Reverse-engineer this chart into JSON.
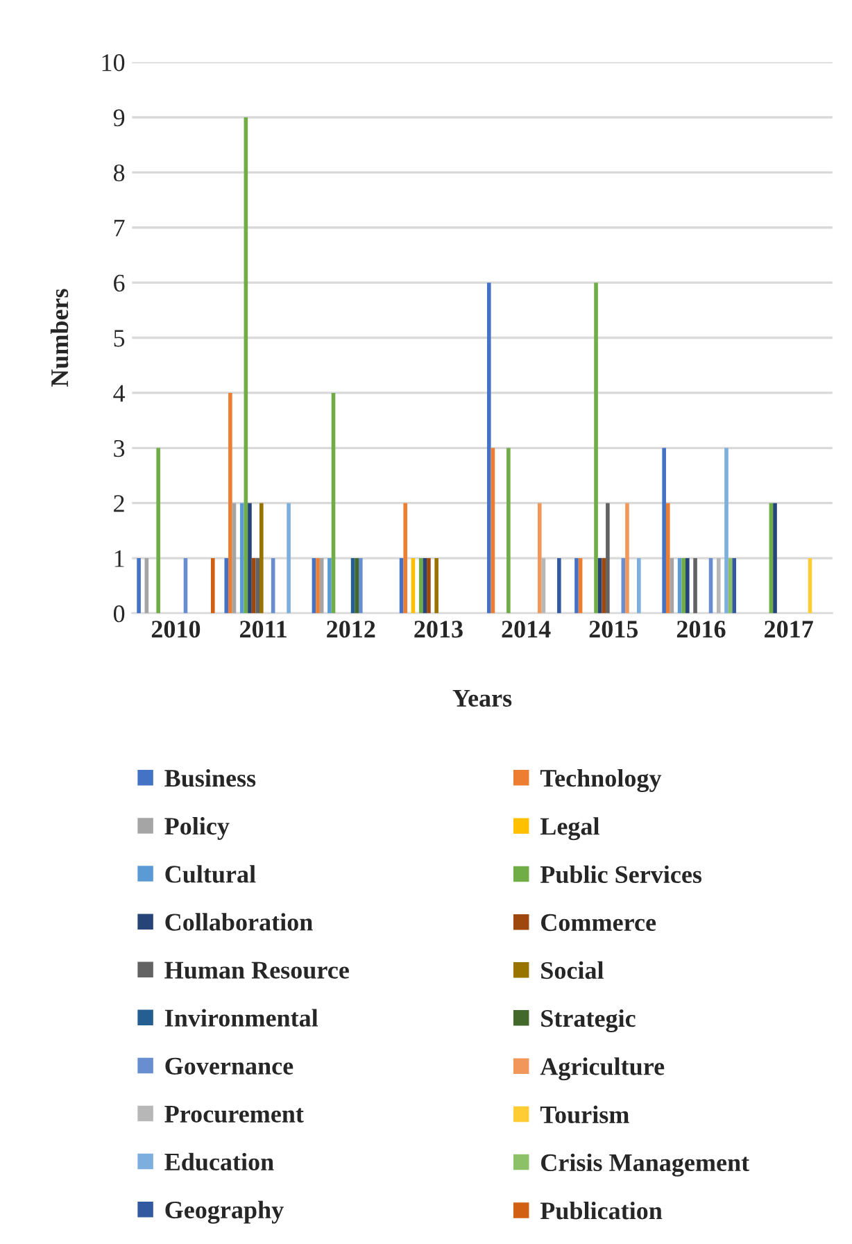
{
  "chart_data": {
    "type": "bar",
    "xlabel": "Years",
    "ylabel": "Numbers",
    "categories": [
      "2010",
      "2011",
      "2012",
      "2013",
      "2014",
      "2015",
      "2016",
      "2017"
    ],
    "ylim": [
      0,
      10
    ],
    "yticks": [
      0,
      1,
      2,
      3,
      4,
      5,
      6,
      7,
      8,
      9,
      10
    ],
    "grid": "y",
    "legend": "bottom",
    "series": [
      {
        "name": "Business",
        "color": "#4472c4",
        "values": [
          1,
          1,
          1,
          1,
          6,
          1,
          3,
          null
        ]
      },
      {
        "name": "Technology",
        "color": "#ed7d31",
        "values": [
          null,
          4,
          1,
          2,
          3,
          1,
          2,
          null
        ]
      },
      {
        "name": "Policy",
        "color": "#a5a5a5",
        "values": [
          1,
          2,
          1,
          null,
          null,
          null,
          1,
          null
        ]
      },
      {
        "name": "Legal",
        "color": "#ffc000",
        "values": [
          null,
          null,
          null,
          1,
          null,
          null,
          null,
          null
        ]
      },
      {
        "name": "Cultural",
        "color": "#5b9bd5",
        "values": [
          null,
          2,
          1,
          null,
          null,
          null,
          1,
          null
        ]
      },
      {
        "name": "Public Services",
        "color": "#70ad47",
        "values": [
          3,
          9,
          4,
          1,
          3,
          6,
          1,
          2
        ]
      },
      {
        "name": "Collaboration",
        "color": "#264478",
        "values": [
          null,
          2,
          null,
          1,
          null,
          1,
          1,
          2
        ]
      },
      {
        "name": "Commerce",
        "color": "#9e480e",
        "values": [
          null,
          1,
          null,
          1,
          null,
          1,
          null,
          null
        ]
      },
      {
        "name": "Human Resource",
        "color": "#636363",
        "values": [
          null,
          1,
          null,
          null,
          null,
          2,
          1,
          null
        ]
      },
      {
        "name": "Social",
        "color": "#997300",
        "values": [
          null,
          2,
          null,
          1,
          null,
          null,
          null,
          null
        ]
      },
      {
        "name": "Invironmental",
        "color": "#255e91",
        "values": [
          null,
          null,
          1,
          null,
          null,
          null,
          null,
          null
        ]
      },
      {
        "name": "Strategic",
        "color": "#43682b",
        "values": [
          null,
          null,
          1,
          null,
          null,
          null,
          null,
          null
        ]
      },
      {
        "name": "Governance",
        "color": "#698ed0",
        "values": [
          1,
          1,
          1,
          null,
          null,
          1,
          1,
          null
        ]
      },
      {
        "name": "Agriculture",
        "color": "#f1975a",
        "values": [
          null,
          null,
          null,
          null,
          2,
          2,
          null,
          null
        ]
      },
      {
        "name": "Procurement",
        "color": "#b7b7b7",
        "values": [
          null,
          null,
          null,
          null,
          1,
          null,
          1,
          null
        ]
      },
      {
        "name": "Tourism",
        "color": "#ffcd33",
        "values": [
          null,
          null,
          null,
          null,
          null,
          null,
          null,
          1
        ]
      },
      {
        "name": "Education",
        "color": "#7cafdd",
        "values": [
          null,
          2,
          null,
          null,
          null,
          1,
          3,
          null
        ]
      },
      {
        "name": "Crisis Management",
        "color": "#8cc168",
        "values": [
          null,
          null,
          null,
          null,
          null,
          null,
          1,
          null
        ]
      },
      {
        "name": "Geography",
        "color": "#335aa1",
        "values": [
          null,
          null,
          null,
          null,
          1,
          null,
          1,
          null
        ]
      },
      {
        "name": "Publication",
        "color": "#d26012",
        "values": [
          1,
          null,
          null,
          null,
          null,
          null,
          null,
          null
        ]
      }
    ]
  }
}
